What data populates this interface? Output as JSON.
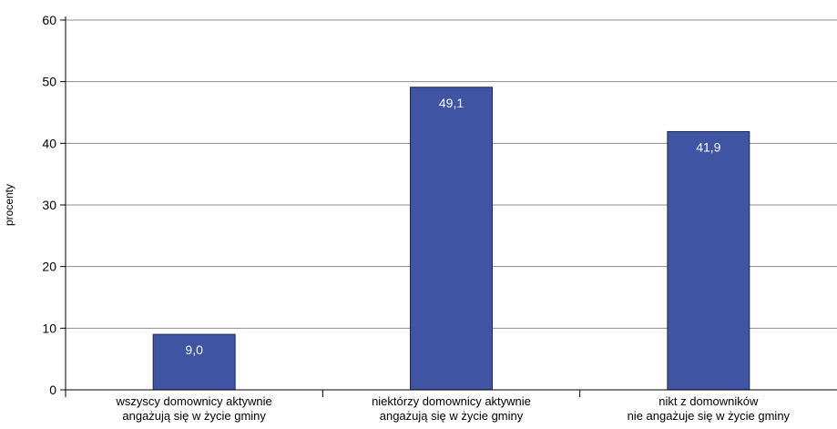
{
  "chart_data": {
    "type": "bar",
    "ylabel": "procenty",
    "ylim": [
      0,
      60
    ],
    "yticks": [
      0,
      10,
      20,
      30,
      40,
      50,
      60
    ],
    "grid": true,
    "categories": [
      [
        "wszyscy domownicy aktywnie",
        "angażują się w życie gminy"
      ],
      [
        "niektórzy domownicy aktywnie",
        "angażują się w życie gminy"
      ],
      [
        "nikt z domowników",
        "nie angażuje się w życie gminy"
      ]
    ],
    "values": [
      9.0,
      49.1,
      41.9
    ],
    "value_labels": [
      "9,0",
      "49,1",
      "41,9"
    ],
    "colors": {
      "bar": "#3f54a3",
      "bar_edge": "#1f2a5a",
      "grid": "#8c8c8c",
      "axis": "#000000",
      "data_label": "#ffffff"
    }
  }
}
